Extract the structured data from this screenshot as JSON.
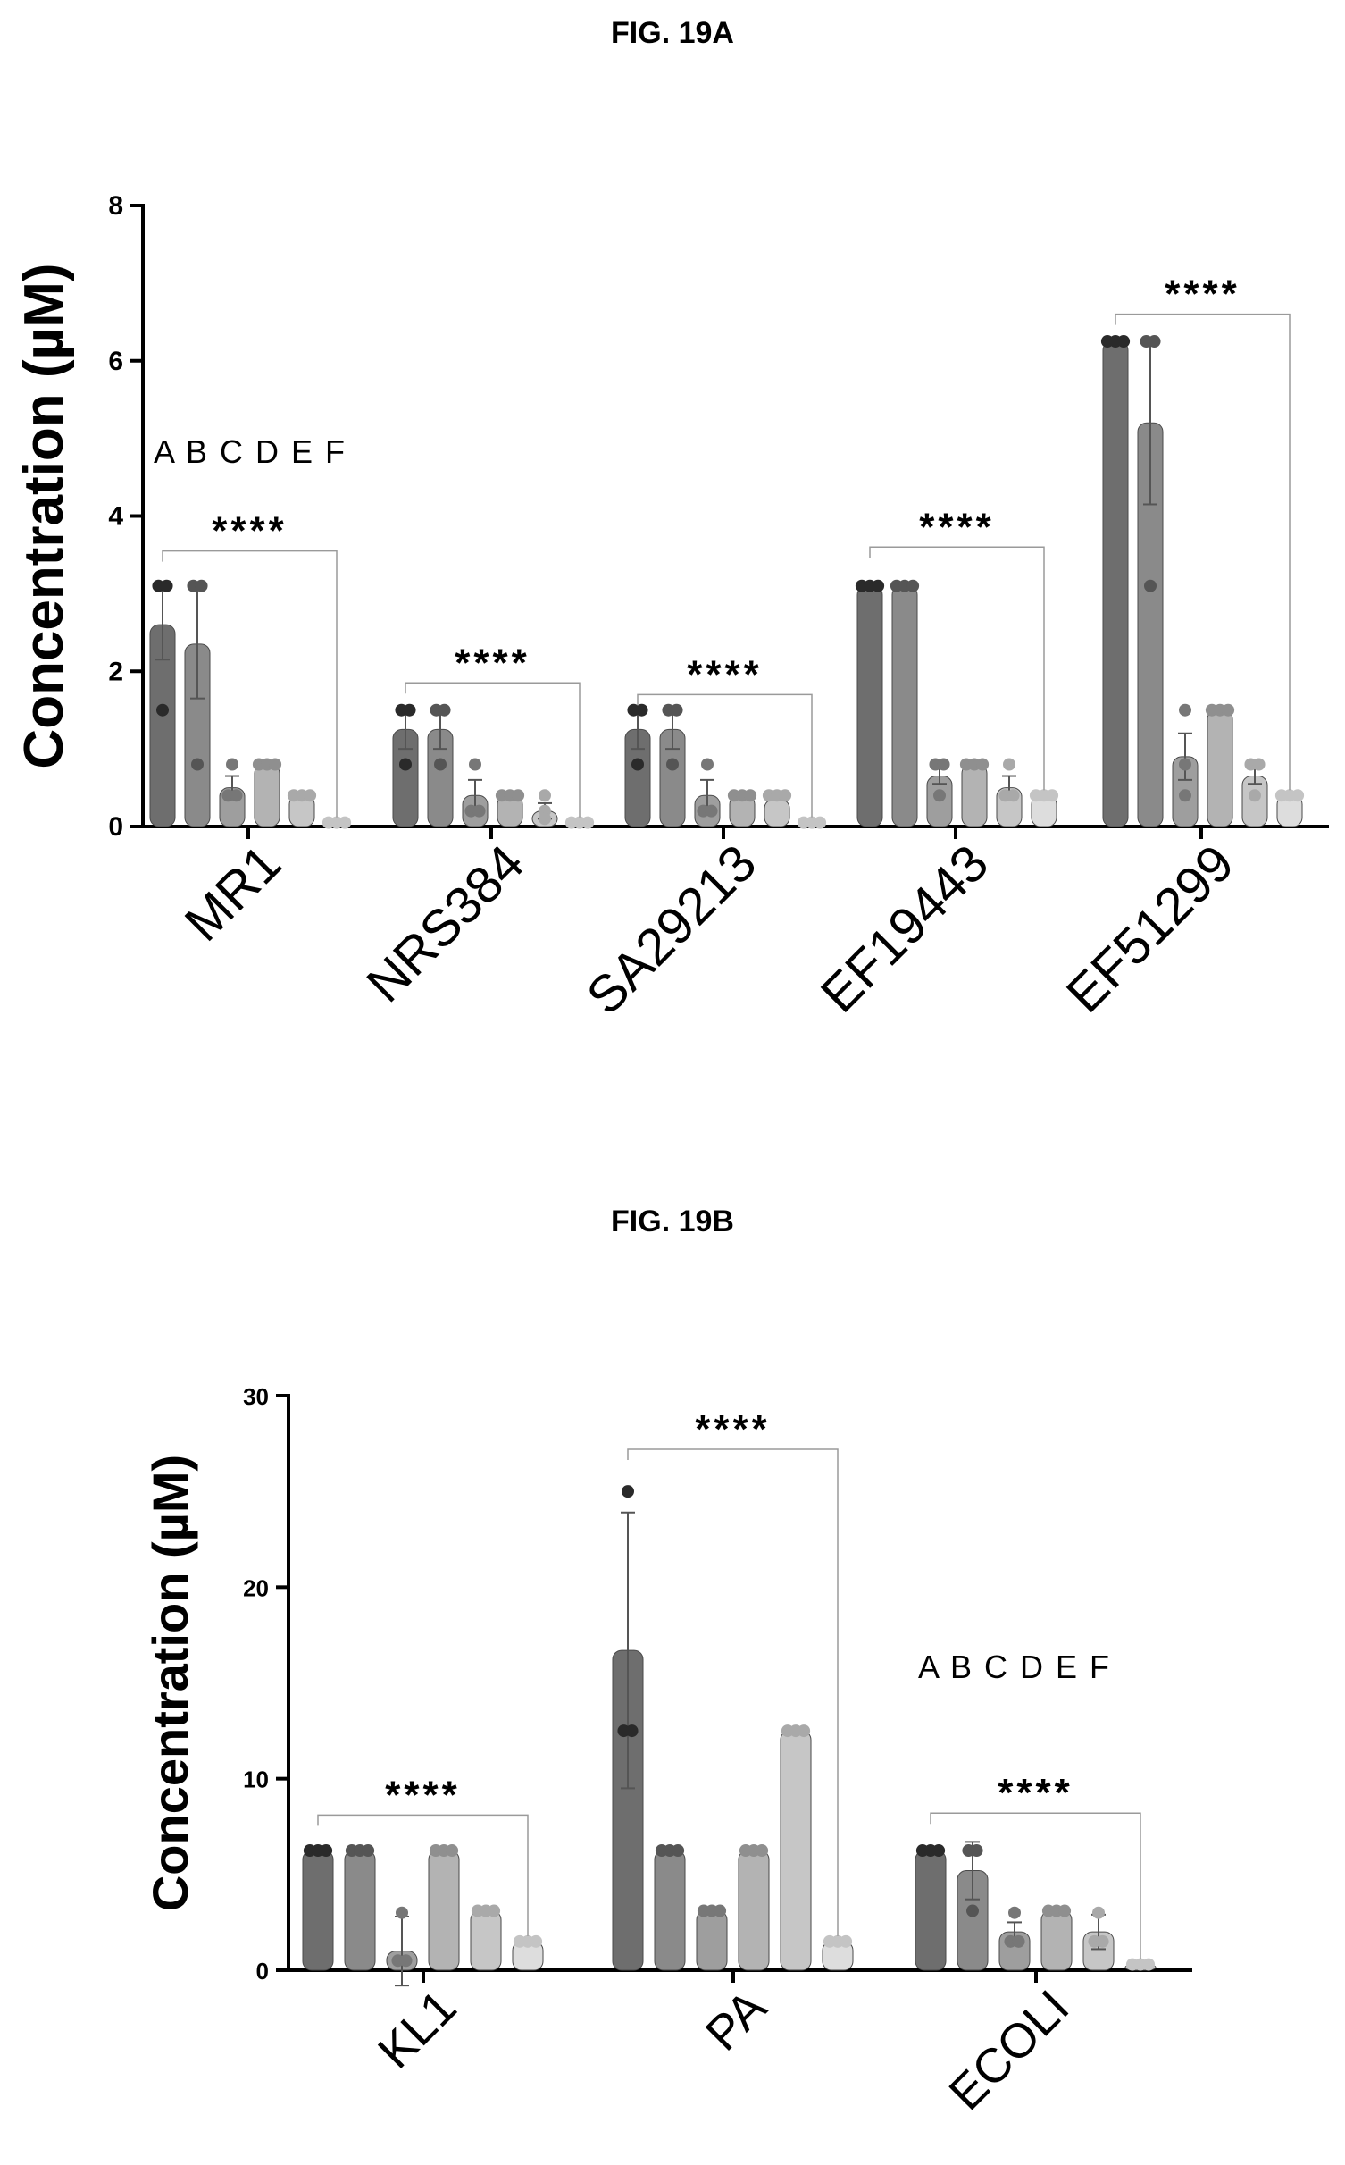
{
  "figures": {
    "a_title": "FIG. 19A",
    "b_title": "FIG. 19B"
  },
  "chart_data": [
    {
      "type": "bar",
      "title": "FIG. 19A",
      "ylabel": "Concentration (µM)",
      "ylim": [
        0,
        8
      ],
      "yticks": [
        "0",
        "2",
        "4",
        "6",
        "8"
      ],
      "categories": [
        "MR1",
        "NRS384",
        "SA29213",
        "EF19443",
        "EF51299"
      ],
      "legend_letters": "A B C D E F",
      "significance": "****",
      "series": [
        {
          "name": "A",
          "values": [
            2.6,
            1.25,
            1.25,
            3.1,
            6.25
          ],
          "errors": [
            0.45,
            0.25,
            0.25,
            0,
            0
          ],
          "points": [
            [
              3.1,
              3.1,
              1.5
            ],
            [
              1.5,
              1.5,
              0.8
            ],
            [
              1.5,
              1.5,
              0.8
            ],
            [
              3.1,
              3.1,
              3.1
            ],
            [
              6.25,
              6.25,
              6.25
            ]
          ]
        },
        {
          "name": "B",
          "values": [
            2.35,
            1.25,
            1.25,
            3.1,
            5.2
          ],
          "errors": [
            0.7,
            0.25,
            0.25,
            0,
            1.05
          ],
          "points": [
            [
              3.1,
              3.1,
              0.8
            ],
            [
              1.5,
              1.5,
              0.8
            ],
            [
              1.5,
              1.5,
              0.8
            ],
            [
              3.1,
              3.1,
              3.1
            ],
            [
              6.25,
              6.25,
              3.1
            ]
          ]
        },
        {
          "name": "C",
          "values": [
            0.5,
            0.4,
            0.4,
            0.65,
            0.9
          ],
          "errors": [
            0.15,
            0.2,
            0.2,
            0.1,
            0.3
          ],
          "points": [
            [
              0.8,
              0.4,
              0.4
            ],
            [
              0.8,
              0.2,
              0.2
            ],
            [
              0.8,
              0.2,
              0.2
            ],
            [
              0.8,
              0.8,
              0.4
            ],
            [
              1.5,
              0.8,
              0.4
            ]
          ]
        },
        {
          "name": "D",
          "values": [
            0.8,
            0.4,
            0.4,
            0.8,
            1.5
          ],
          "errors": [
            0,
            0,
            0,
            0,
            0
          ],
          "points": [
            [
              0.8,
              0.8,
              0.8
            ],
            [
              0.4,
              0.4,
              0.4
            ],
            [
              0.4,
              0.4,
              0.4
            ],
            [
              0.8,
              0.8,
              0.8
            ],
            [
              1.5,
              1.5,
              1.5
            ]
          ]
        },
        {
          "name": "E",
          "values": [
            0.4,
            0.2,
            0.35,
            0.5,
            0.65
          ],
          "errors": [
            0,
            0.1,
            0,
            0.15,
            0.1
          ],
          "points": [
            [
              0.4,
              0.4,
              0.4
            ],
            [
              0.4,
              0.2,
              0.1
            ],
            [
              0.4,
              0.4,
              0.4
            ],
            [
              0.8,
              0.4,
              0.4
            ],
            [
              0.8,
              0.8,
              0.4
            ]
          ]
        },
        {
          "name": "F",
          "values": [
            0.05,
            0.05,
            0.05,
            0.4,
            0.4
          ],
          "errors": [
            0,
            0,
            0,
            0,
            0
          ],
          "points": [
            [
              0.05,
              0.05,
              0.05
            ],
            [
              0.05,
              0.05,
              0.05
            ],
            [
              0.05,
              0.05,
              0.05
            ],
            [
              0.4,
              0.4,
              0.4
            ],
            [
              0.4,
              0.4,
              0.4
            ]
          ]
        }
      ]
    },
    {
      "type": "bar",
      "title": "FIG. 19B",
      "ylabel": "Concentration (µM)",
      "ylim": [
        0,
        30
      ],
      "yticks": [
        "0",
        "10",
        "20",
        "30"
      ],
      "categories": [
        "KL1",
        "PA",
        "ECOLI"
      ],
      "legend_letters": "A B C D E F",
      "significance": "****",
      "series": [
        {
          "name": "A",
          "values": [
            6.25,
            16.7,
            6.25
          ],
          "errors": [
            0,
            7.2,
            0
          ],
          "points": [
            [
              6.25,
              6.25,
              6.25
            ],
            [
              25,
              12.5,
              12.5
            ],
            [
              6.25,
              6.25,
              6.25
            ]
          ]
        },
        {
          "name": "B",
          "values": [
            6.25,
            6.25,
            5.2
          ],
          "errors": [
            0,
            0,
            1.5
          ],
          "points": [
            [
              6.25,
              6.25,
              6.25
            ],
            [
              6.25,
              6.25,
              6.25
            ],
            [
              6.25,
              6.25,
              3.1
            ]
          ]
        },
        {
          "name": "C",
          "values": [
            1.0,
            3.1,
            2.0
          ],
          "errors": [
            1.8,
            0,
            0.5
          ],
          "points": [
            [
              3.0,
              0.5,
              0.5
            ],
            [
              3.1,
              3.1,
              3.1
            ],
            [
              3.0,
              1.5,
              1.5
            ]
          ]
        },
        {
          "name": "D",
          "values": [
            6.25,
            6.25,
            3.1
          ],
          "errors": [
            0,
            0,
            0
          ],
          "points": [
            [
              6.25,
              6.25,
              6.25
            ],
            [
              6.25,
              6.25,
              6.25
            ],
            [
              3.1,
              3.1,
              3.1
            ]
          ]
        },
        {
          "name": "E",
          "values": [
            3.1,
            12.5,
            2.0
          ],
          "errors": [
            0,
            0,
            0.9
          ],
          "points": [
            [
              3.1,
              3.1,
              3.1
            ],
            [
              12.5,
              12.5,
              12.5
            ],
            [
              3.0,
              1.5,
              1.5
            ]
          ]
        },
        {
          "name": "F",
          "values": [
            1.5,
            1.5,
            0.3
          ],
          "errors": [
            0,
            0,
            0
          ],
          "points": [
            [
              1.5,
              1.5,
              1.5
            ],
            [
              1.5,
              1.5,
              1.5
            ],
            [
              0.3,
              0.3,
              0.3
            ]
          ]
        }
      ]
    }
  ]
}
